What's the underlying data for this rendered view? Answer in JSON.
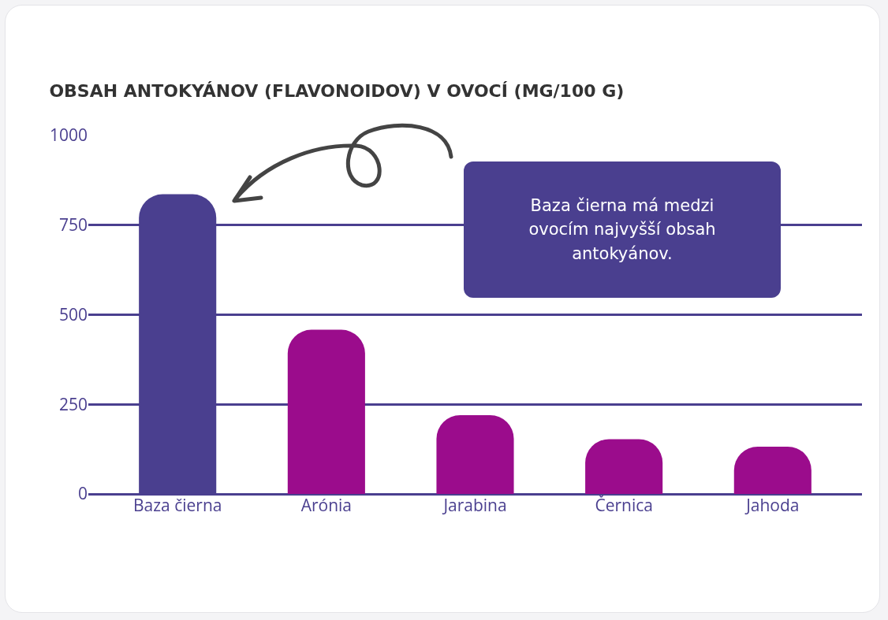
{
  "chart_data": {
    "type": "bar",
    "title": "OBSAH ANTOKYÁNOV (FLAVONOIDOV) V OVOCÍ (MG/100 G)",
    "categories": [
      "Baza čierna",
      "Arónia",
      "Jarabina",
      "Černica",
      "Jahoda"
    ],
    "values": [
      836,
      458,
      220,
      153,
      132
    ],
    "colors": [
      "#4a3f8f",
      "#9b0c8c",
      "#9b0c8c",
      "#9b0c8c",
      "#9b0c8c"
    ],
    "ylim": [
      0,
      1000
    ],
    "yticks": [
      0,
      250,
      500,
      750,
      1000
    ],
    "grid": "y",
    "annotations": [
      "Baza čierna má medzi\novocím najvyšší obsah\nantokyánov."
    ]
  }
}
